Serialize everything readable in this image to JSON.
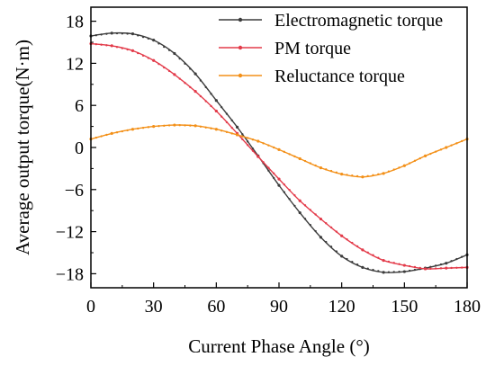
{
  "chart_data": {
    "type": "line",
    "xlabel": "Current Phase Angle (°)",
    "ylabel": "Average output torque(N·m)",
    "xlim": [
      0,
      180
    ],
    "ylim": [
      -20,
      20
    ],
    "x_ticks": [
      0,
      30,
      60,
      90,
      120,
      150,
      180
    ],
    "y_ticks": [
      18,
      12,
      6,
      0,
      -6,
      -12,
      -18
    ],
    "grid": false,
    "legend_position": "top-right",
    "x": [
      0,
      10,
      20,
      30,
      40,
      50,
      60,
      70,
      80,
      90,
      100,
      110,
      120,
      130,
      140,
      150,
      160,
      170,
      180
    ],
    "series": [
      {
        "name": "Electromagnetic torque",
        "color": "#3c3c3c",
        "values": [
          15.9,
          16.3,
          16.2,
          15.3,
          13.4,
          10.5,
          6.7,
          2.9,
          -1.2,
          -5.4,
          -9.3,
          -12.8,
          -15.5,
          -17.1,
          -17.8,
          -17.7,
          -17.2,
          -16.5,
          -15.3
        ]
      },
      {
        "name": "PM torque",
        "color": "#e33b4a",
        "values": [
          14.8,
          14.5,
          13.8,
          12.4,
          10.4,
          8.0,
          5.2,
          2.0,
          -1.3,
          -4.5,
          -7.6,
          -10.2,
          -12.6,
          -14.6,
          -16.1,
          -16.8,
          -17.3,
          -17.2,
          -17.1
        ]
      },
      {
        "name": "Reluctance torque",
        "color": "#f39018",
        "values": [
          1.2,
          2.0,
          2.6,
          3.0,
          3.2,
          3.1,
          2.6,
          1.8,
          0.9,
          -0.3,
          -1.6,
          -2.9,
          -3.8,
          -4.2,
          -3.7,
          -2.6,
          -1.2,
          0.0,
          1.2
        ]
      }
    ]
  }
}
